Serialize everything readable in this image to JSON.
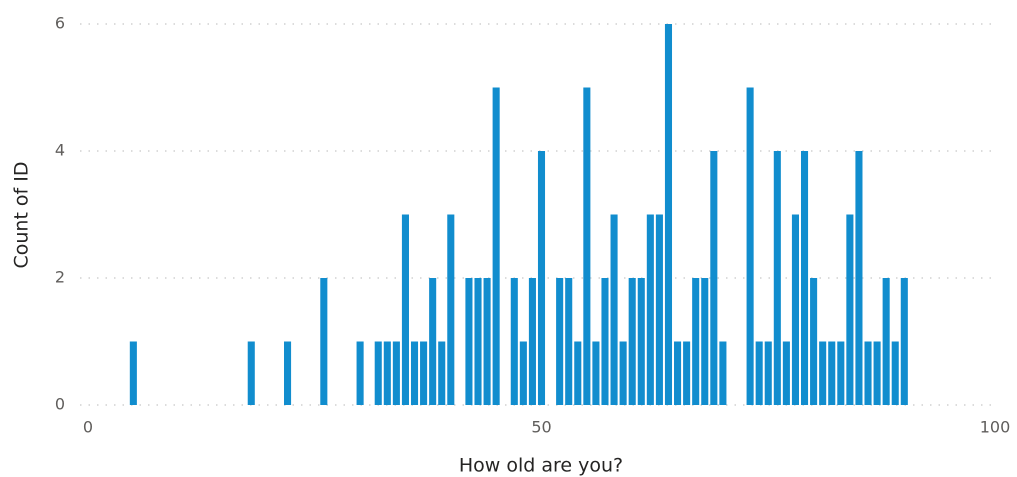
{
  "chart_data": {
    "type": "bar",
    "x_label": "How old are you?",
    "y_label": "Count of ID",
    "x": [
      5,
      18,
      22,
      26,
      30,
      32,
      33,
      34,
      35,
      36,
      37,
      38,
      39,
      40,
      42,
      43,
      44,
      45,
      47,
      48,
      49,
      50,
      52,
      53,
      54,
      55,
      56,
      57,
      58,
      59,
      60,
      61,
      62,
      63,
      64,
      65,
      66,
      67,
      68,
      69,
      70,
      73,
      74,
      75,
      76,
      77,
      78,
      79,
      80,
      81,
      82,
      83,
      84,
      85,
      86,
      87,
      88,
      89,
      90
    ],
    "values": [
      1,
      1,
      1,
      2,
      1,
      1,
      1,
      1,
      3,
      1,
      1,
      2,
      1,
      3,
      2,
      2,
      2,
      5,
      2,
      1,
      2,
      4,
      2,
      2,
      1,
      5,
      1,
      2,
      3,
      1,
      2,
      2,
      3,
      3,
      6,
      1,
      1,
      2,
      2,
      4,
      1,
      5,
      1,
      1,
      4,
      1,
      3,
      4,
      2,
      1,
      1,
      1,
      3,
      4,
      1,
      1,
      2,
      1,
      2
    ],
    "color": "#118dce",
    "xlim": [
      0,
      100
    ],
    "xticks": [
      0,
      50,
      100
    ],
    "ylim": [
      0,
      6
    ],
    "yticks": [
      0,
      2,
      4,
      6
    ],
    "grid": true
  }
}
